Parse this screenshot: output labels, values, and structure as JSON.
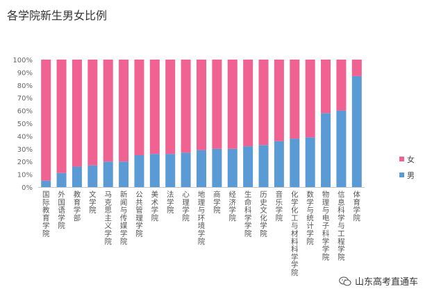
{
  "title": "各学院新生男女比例",
  "watermark": {
    "text": "山东高考直通车",
    "icon": "wechat-icon"
  },
  "chart_data": {
    "type": "bar",
    "stacked": true,
    "title": "各学院新生男女比例",
    "categories": [
      "国际教育学院",
      "外国语学院",
      "教育学部",
      "文学院",
      "马克思主义学院",
      "新闻与传媒学院",
      "公共管理学院",
      "美术学院",
      "法学院",
      "心理学院",
      "地理与环境学院",
      "商学院",
      "经济学院",
      "生命科学学院",
      "历史文化学院",
      "音乐学院",
      "化学化工与材料科学学院",
      "数学与统计学院",
      "物理与电子科学学院",
      "信息科学与工程学院",
      "体育学院"
    ],
    "series": [
      {
        "name": "男",
        "color": "#5b9bd5",
        "values": [
          5,
          11,
          16,
          17,
          20,
          20,
          25,
          26,
          26,
          27,
          29,
          30,
          30,
          32,
          33,
          36,
          38,
          39,
          58,
          60,
          87
        ]
      },
      {
        "name": "女",
        "color": "#f06292",
        "values": [
          95,
          89,
          84,
          83,
          80,
          80,
          75,
          74,
          74,
          73,
          71,
          70,
          70,
          68,
          67,
          64,
          62,
          61,
          42,
          40,
          13
        ]
      }
    ],
    "ylim": [
      0,
      100
    ],
    "yticks": [
      "0%",
      "10%",
      "20%",
      "30%",
      "40%",
      "50%",
      "60%",
      "70%",
      "80%",
      "90%",
      "100%"
    ],
    "grid": false,
    "legend": {
      "position": "right",
      "order": [
        "女",
        "男"
      ]
    }
  }
}
